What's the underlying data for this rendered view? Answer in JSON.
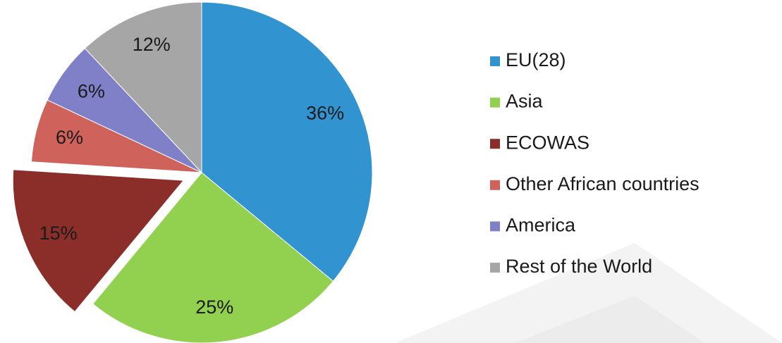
{
  "chart_data": {
    "type": "pie",
    "categories": [
      "EU(28)",
      "Asia",
      "ECOWAS",
      "Other African countries",
      "America",
      "Rest of the World"
    ],
    "values": [
      36,
      25,
      15,
      6,
      6,
      12
    ],
    "value_labels": [
      "36%",
      "25%",
      "15%",
      "6%",
      "6%",
      "12%"
    ],
    "colors": [
      "#3194d0",
      "#92d050",
      "#8b2e2a",
      "#d0625c",
      "#8080c8",
      "#a6a6a6"
    ],
    "explode": [
      false,
      false,
      true,
      false,
      false,
      false
    ],
    "legend": "right"
  }
}
